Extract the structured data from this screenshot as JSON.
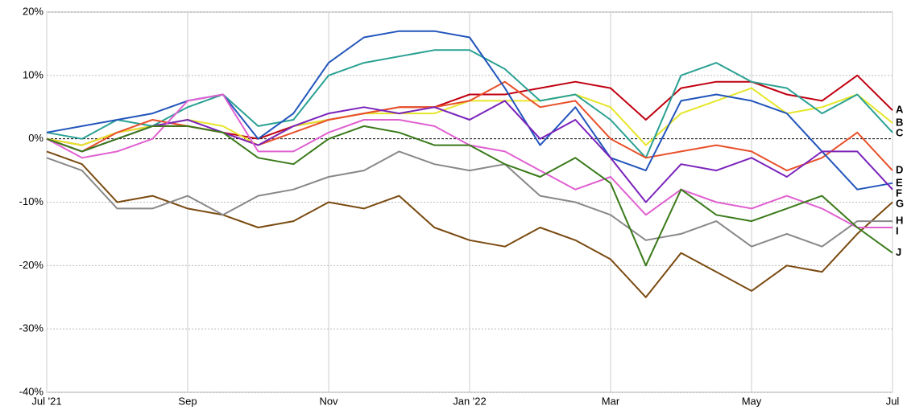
{
  "chart_data": {
    "type": "line",
    "x": [
      0,
      0.5,
      1,
      1.5,
      2,
      2.5,
      3,
      3.5,
      4,
      4.5,
      5,
      5.5,
      6,
      6.5,
      7,
      7.5,
      8,
      8.5,
      9,
      9.5,
      10,
      10.5,
      11,
      11.5,
      12
    ],
    "xlim": [
      0,
      12
    ],
    "xticks": [
      {
        "value": 0,
        "label": "Jul '21"
      },
      {
        "value": 2,
        "label": "Sep"
      },
      {
        "value": 4,
        "label": "Nov"
      },
      {
        "value": 6,
        "label": "Jan '22"
      },
      {
        "value": 8,
        "label": "Mar"
      },
      {
        "value": 10,
        "label": "May"
      },
      {
        "value": 12,
        "label": "Jul"
      }
    ],
    "ylim": [
      -40,
      20
    ],
    "yticks": [
      {
        "value": 20,
        "label": "20%"
      },
      {
        "value": 10,
        "label": "10%"
      },
      {
        "value": 0,
        "label": "0%"
      },
      {
        "value": -10,
        "label": "-10%"
      },
      {
        "value": -20,
        "label": "-20%"
      },
      {
        "value": -30,
        "label": "-30%"
      },
      {
        "value": -40,
        "label": "-40%"
      }
    ],
    "grid": true,
    "series": [
      {
        "name": "A",
        "color": "#c00010",
        "values": [
          0,
          -1,
          1,
          2,
          2,
          1,
          0,
          2,
          3,
          4,
          5,
          5,
          7,
          7,
          8,
          9,
          8,
          3,
          8,
          9,
          9,
          7,
          6,
          10,
          4.5
        ]
      },
      {
        "name": "B",
        "color": "#e6e62a",
        "values": [
          0,
          -1,
          1,
          2,
          3,
          2,
          -1,
          2,
          3,
          4,
          4,
          4,
          6,
          6,
          6,
          7,
          5,
          -1,
          4,
          6,
          8,
          4,
          5,
          7,
          2.5
        ]
      },
      {
        "name": "C",
        "color": "#2aa193",
        "values": [
          1,
          0,
          3,
          2,
          5,
          7,
          2,
          3,
          10,
          12,
          13,
          14,
          14,
          11,
          6,
          7,
          3,
          -3,
          10,
          12,
          9,
          8,
          4,
          7,
          1
        ]
      },
      {
        "name": "D",
        "color": "#e8502a",
        "values": [
          0,
          -2,
          1,
          3,
          2,
          1,
          -1,
          1,
          3,
          4,
          5,
          5,
          6,
          9,
          5,
          6,
          0,
          -3,
          -2,
          -1,
          -2,
          -5,
          -3,
          1,
          -5
        ]
      },
      {
        "name": "E",
        "color": "#2255bb",
        "values": [
          1,
          2,
          3,
          4,
          6,
          7,
          0,
          4,
          12,
          16,
          17,
          17,
          16,
          8,
          -1,
          5,
          -3,
          -5,
          6,
          7,
          6,
          4,
          -2,
          -8,
          -7
        ]
      },
      {
        "name": "F",
        "color": "#7a22bb",
        "values": [
          0,
          -2,
          0,
          2,
          3,
          1,
          -1,
          2,
          4,
          5,
          4,
          5,
          3,
          6,
          0,
          3,
          -3,
          -10,
          -4,
          -5,
          -3,
          -6,
          -2,
          -2,
          -8
        ]
      },
      {
        "name": "G",
        "color": "#7a4a10",
        "values": [
          -2,
          -4,
          -10,
          -9,
          -11,
          -12,
          -14,
          -13,
          -10,
          -11,
          -9,
          -14,
          -16,
          -17,
          -14,
          -16,
          -19,
          -25,
          -18,
          -21,
          -24,
          -20,
          -21,
          -15,
          -10
        ]
      },
      {
        "name": "H",
        "color": "#888888",
        "values": [
          -3,
          -5,
          -11,
          -11,
          -9,
          -12,
          -9,
          -8,
          -6,
          -5,
          -2,
          -4,
          -5,
          -4,
          -9,
          -10,
          -12,
          -16,
          -15,
          -13,
          -17,
          -15,
          -17,
          -13,
          -13
        ]
      },
      {
        "name": "I",
        "color": "#e060d0",
        "values": [
          0,
          -3,
          -2,
          0,
          6,
          7,
          -2,
          -2,
          1,
          3,
          3,
          2,
          -1,
          -2,
          -5,
          -8,
          -6,
          -12,
          -8,
          -10,
          -11,
          -9,
          -11,
          -14,
          -14
        ]
      },
      {
        "name": "J",
        "color": "#3a7a1a",
        "values": [
          0,
          -2,
          0,
          2,
          2,
          1,
          -3,
          -4,
          0,
          2,
          1,
          -1,
          -1,
          -4,
          -6,
          -3,
          -7,
          -20,
          -8,
          -12,
          -13,
          -11,
          -9,
          -14,
          -18
        ]
      }
    ]
  }
}
